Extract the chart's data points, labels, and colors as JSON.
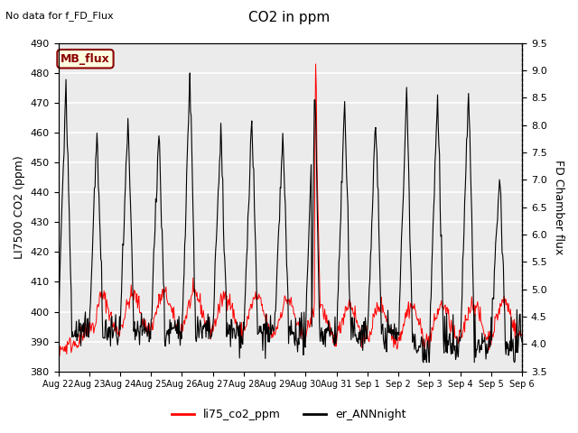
{
  "title": "CO2 in ppm",
  "top_left_text": "No data for f_FD_Flux",
  "ylabel_left": "LI7500 CO2 (ppm)",
  "ylabel_right": "FD Chamber flux",
  "ylim_left": [
    380,
    490
  ],
  "ylim_right": [
    3.5,
    9.5
  ],
  "yticks_left": [
    380,
    390,
    400,
    410,
    420,
    430,
    440,
    450,
    460,
    470,
    480,
    490
  ],
  "yticks_right": [
    3.5,
    4.0,
    4.5,
    5.0,
    5.5,
    6.0,
    6.5,
    7.0,
    7.5,
    8.0,
    8.5,
    9.0,
    9.5
  ],
  "xtick_labels": [
    "Aug 22",
    "Aug 23",
    "Aug 24",
    "Aug 25",
    "Aug 26",
    "Aug 27",
    "Aug 28",
    "Aug 29",
    "Aug 30",
    "Aug 31",
    "Sep 1",
    "Sep 2",
    "Sep 3",
    "Sep 4",
    "Sep 5",
    "Sep 6"
  ],
  "legend_labels": [
    "li75_co2_ppm",
    "er_ANNnight"
  ],
  "legend_colors": [
    "#ff0000",
    "#000000"
  ],
  "mb_flux_label": "MB_flux",
  "plot_bg_color": "#ebebeb",
  "line1_color": "#ff0000",
  "line2_color": "#000000"
}
